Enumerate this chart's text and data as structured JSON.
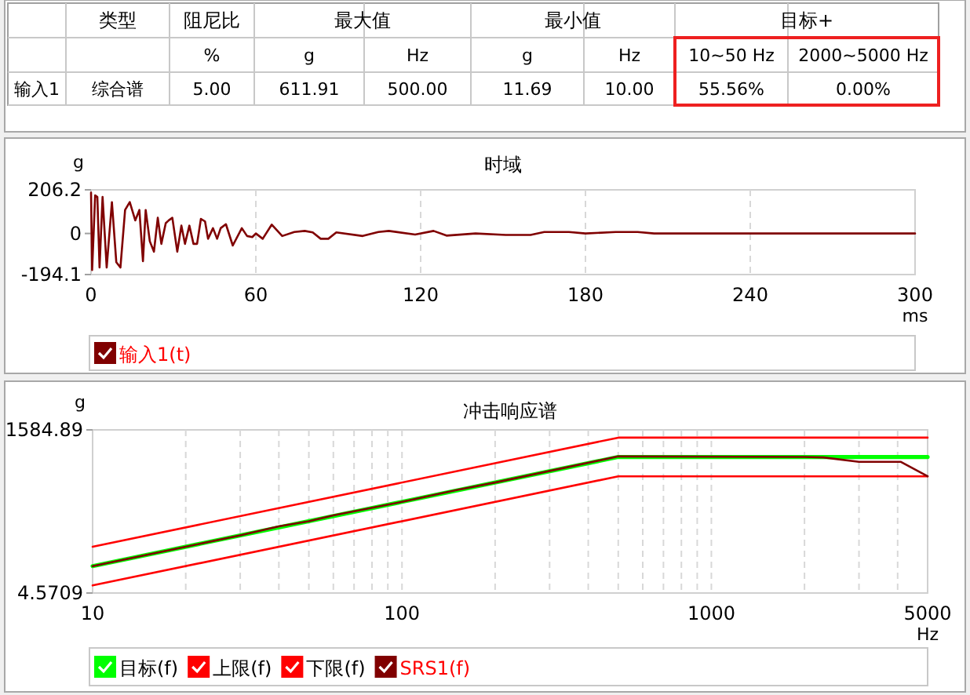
{
  "chart_data": [
    {
      "type": "other",
      "annotations": [
        "类型",
        "阻尼比",
        "最大值",
        "最小值",
        "目标+",
        "%",
        "g",
        "Hz",
        "g",
        "Hz",
        "10~50 Hz",
        "2000~5000 Hz",
        "输入1",
        "综合谱",
        "5.00",
        "611.91",
        "500.00",
        "11.69",
        "10.00",
        "55.56%",
        "0.00%"
      ]
    },
    {
      "type": "line",
      "title": "时域",
      "xlabel": "ms",
      "ylabel": "g",
      "xlim": [
        0,
        300
      ],
      "xticks": [
        0,
        60,
        120,
        180,
        240,
        300
      ],
      "ylim": [
        -194.1,
        206.2
      ],
      "yticks": [
        206.2,
        0,
        -194.1
      ],
      "grid": "x",
      "legend": "bottom",
      "series": [
        {
          "name": "输入1(t)",
          "color": "#800000",
          "x": [
            0,
            0.4,
            1.5,
            2.3,
            3.1,
            4.2,
            5.7,
            7.6,
            9.2,
            10.7,
            12.4,
            14.1,
            16.1,
            17.6,
            18.9,
            19.9,
            21.4,
            22.9,
            24.3,
            25.6,
            27.2,
            28.3,
            29.6,
            31.4,
            32.9,
            34.2,
            35.8,
            37.3,
            38.6,
            40,
            41.5,
            42.6,
            44.4,
            45.9,
            47.2,
            49.1,
            51.6,
            54.9,
            56.8,
            58.7,
            60,
            62.5,
            65.8,
            69.6,
            74,
            77.8,
            80.7,
            83.6,
            86.4,
            89.3,
            98.9,
            104.6,
            108.4,
            118,
            124.7,
            129.4,
            140,
            151,
            160,
            165,
            174,
            180,
            191,
            199,
            205,
            300
          ],
          "values": [
            193,
            -173,
            180,
            173,
            -161,
            173,
            -161,
            148,
            -136,
            -161,
            111,
            148,
            62,
            111,
            -131,
            111,
            -37,
            -86,
            74,
            -49,
            49,
            62,
            74,
            -86,
            37,
            -49,
            37,
            -49,
            -49,
            69,
            57,
            -25,
            25,
            -25,
            25,
            44,
            -57,
            25,
            -12,
            -17,
            0,
            -25,
            42,
            -12,
            7,
            12,
            5,
            -25,
            -25,
            5,
            -12,
            7,
            12,
            -5,
            12,
            -10,
            0,
            -7,
            -7,
            7,
            7,
            0,
            7,
            7,
            0,
            0
          ]
        }
      ]
    },
    {
      "type": "line",
      "title": "冲击响应谱",
      "xlabel": "Hz",
      "ylabel": "g",
      "log": "xy",
      "xlim": [
        10,
        5000
      ],
      "xticks": [
        10,
        {
          "value": 20,
          "label": null
        },
        {
          "value": 30,
          "label": null
        },
        {
          "value": 40,
          "label": null
        },
        {
          "value": 50,
          "label": null
        },
        {
          "value": 60,
          "label": null
        },
        {
          "value": 70,
          "label": null
        },
        {
          "value": 80,
          "label": null
        },
        {
          "value": 90,
          "label": null
        },
        100,
        {
          "value": 200,
          "label": null
        },
        {
          "value": 300,
          "label": null
        },
        {
          "value": 400,
          "label": null
        },
        {
          "value": 500,
          "label": null
        },
        {
          "value": 600,
          "label": null
        },
        {
          "value": 700,
          "label": null
        },
        {
          "value": 800,
          "label": null
        },
        {
          "value": 900,
          "label": null
        },
        1000,
        {
          "value": 2000,
          "label": null
        },
        {
          "value": 3000,
          "label": null
        },
        {
          "value": 4000,
          "label": null
        },
        5000
      ],
      "ylim": [
        4.5709,
        1584.89
      ],
      "yticks": [
        1584.89,
        4.5709
      ],
      "grid": "x",
      "legend": "bottom",
      "series": [
        {
          "name": "目标(f)",
          "color": "#00ff00",
          "x": [
            10,
            500,
            5000
          ],
          "values": [
            12,
            600,
            600
          ]
        },
        {
          "name": "上限(f)",
          "color": "#ff0000",
          "x": [
            10,
            500,
            5000
          ],
          "values": [
            24,
            1200,
            1200
          ]
        },
        {
          "name": "下限(f)",
          "color": "#ff0000",
          "x": [
            10,
            500,
            5000
          ],
          "values": [
            6,
            300,
            300
          ]
        },
        {
          "name": "SRS1(f)",
          "color": "#800000",
          "x": [
            10,
            20,
            30,
            40,
            50,
            60,
            100,
            150,
            200,
            500,
            2000,
            2300,
            3000,
            4100,
            5000
          ],
          "values": [
            12,
            24,
            36,
            50,
            60,
            74,
            120,
            183,
            240,
            611.91,
            600,
            590,
            503,
            503,
            300
          ]
        }
      ]
    }
  ]
}
